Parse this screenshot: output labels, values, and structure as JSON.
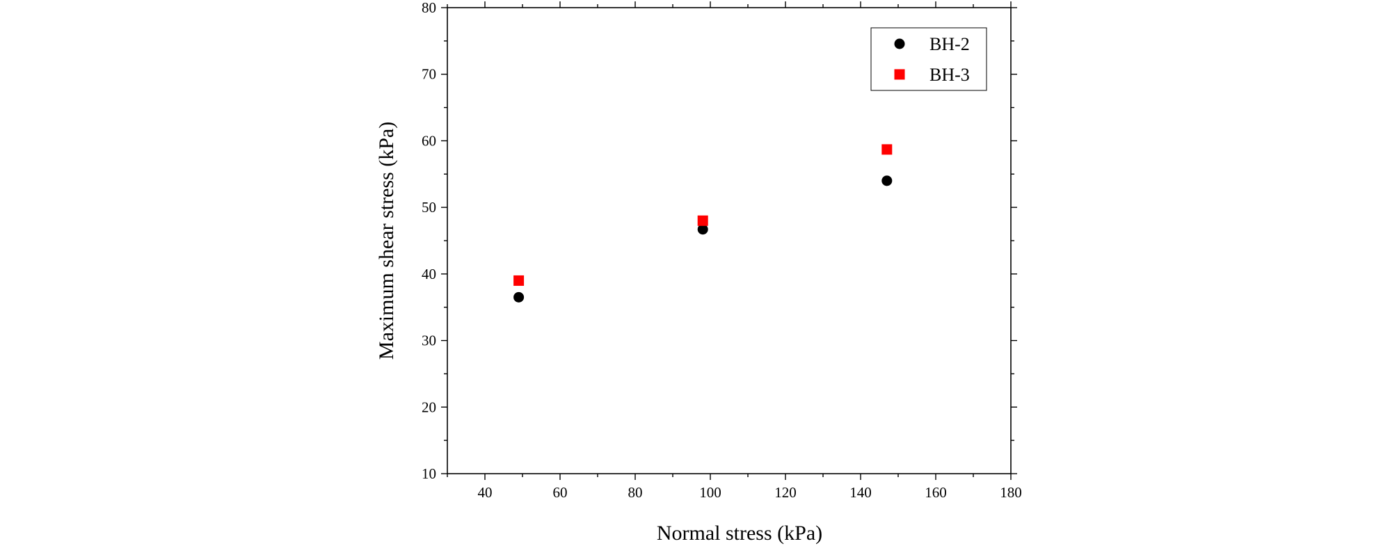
{
  "chart_data": {
    "type": "scatter",
    "xlabel": "Normal stress (kPa)",
    "ylabel": "Maximum shear stress (kPa)",
    "xlim": [
      30,
      180
    ],
    "ylim": [
      10,
      80
    ],
    "xticks": [
      40,
      60,
      80,
      100,
      120,
      140,
      160,
      180
    ],
    "yticks": [
      10,
      20,
      30,
      40,
      50,
      60,
      70,
      80
    ],
    "grid": false,
    "legend_position": "top-right",
    "series": [
      {
        "name": "BH-2",
        "marker": "circle",
        "color": "#000000",
        "x": [
          49,
          98,
          147
        ],
        "y": [
          36.5,
          46.7,
          54.0
        ]
      },
      {
        "name": "BH-3",
        "marker": "square",
        "color": "#ff0000",
        "x": [
          49,
          98,
          147
        ],
        "y": [
          39.0,
          48.0,
          58.7
        ]
      }
    ]
  }
}
